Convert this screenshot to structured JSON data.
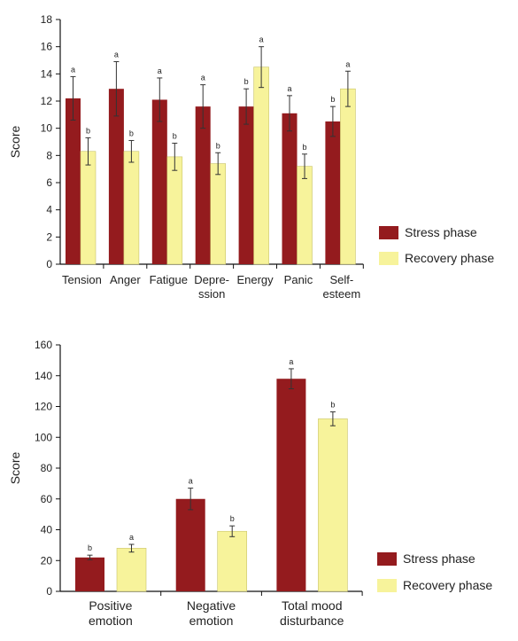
{
  "colors": {
    "stress": "#941b1e",
    "recovery": "#f7f39b",
    "axis": "#111111",
    "error": "#333333"
  },
  "legend_labels": [
    "Stress phase",
    "Recovery phase"
  ],
  "chart_data": [
    {
      "type": "bar",
      "ylabel": "Score",
      "ylim": [
        0,
        18
      ],
      "yticks": [
        0,
        2,
        4,
        6,
        8,
        10,
        12,
        14,
        16,
        18
      ],
      "categories": [
        [
          "Tension"
        ],
        [
          "Anger"
        ],
        [
          "Fatigue"
        ],
        [
          "Depre-",
          "ssion"
        ],
        [
          "Energy"
        ],
        [
          "Panic"
        ],
        [
          "Self-",
          "esteem"
        ]
      ],
      "series": [
        {
          "name": "Stress phase",
          "values": [
            12.2,
            12.9,
            12.1,
            11.6,
            11.6,
            11.1,
            10.5
          ],
          "errors": [
            1.6,
            2.0,
            1.6,
            1.6,
            1.3,
            1.3,
            1.1
          ],
          "labels": [
            "a",
            "a",
            "a",
            "a",
            "b",
            "a",
            "b"
          ]
        },
        {
          "name": "Recovery phase",
          "values": [
            8.3,
            8.3,
            7.9,
            7.4,
            14.5,
            7.2,
            12.9
          ],
          "errors": [
            1.0,
            0.8,
            1.0,
            0.8,
            1.5,
            0.9,
            1.3
          ],
          "labels": [
            "b",
            "b",
            "b",
            "b",
            "a",
            "b",
            "a"
          ]
        }
      ],
      "legend": "right"
    },
    {
      "type": "bar",
      "ylabel": "Score",
      "ylim": [
        0,
        160
      ],
      "yticks": [
        0,
        20,
        40,
        60,
        80,
        100,
        120,
        140,
        160
      ],
      "categories": [
        [
          "Positive",
          "emotion"
        ],
        [
          "Negative",
          "emotion"
        ],
        [
          "Total mood",
          "disturbance"
        ]
      ],
      "series": [
        {
          "name": "Stress phase",
          "values": [
            22,
            60,
            138
          ],
          "errors": [
            1.5,
            7,
            6.5
          ],
          "labels": [
            "b",
            "a",
            "a"
          ]
        },
        {
          "name": "Recovery phase",
          "values": [
            28,
            39,
            112
          ],
          "errors": [
            2.5,
            3.5,
            4.5
          ],
          "labels": [
            "a",
            "b",
            "b"
          ]
        }
      ],
      "legend": "bottom-right"
    }
  ]
}
